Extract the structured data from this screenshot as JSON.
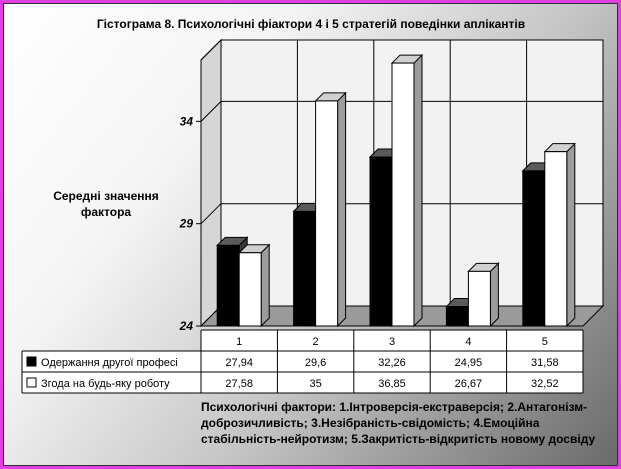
{
  "chart_data": {
    "type": "bar",
    "title": "Гістограма 8. Психологічні фіактори 4 і 5 стратегій поведінки аплікантів",
    "ylabel": [
      "Середні значення",
      "фактора"
    ],
    "ylim": [
      24,
      37
    ],
    "yticks": [
      "24",
      "29",
      "34"
    ],
    "categories": [
      "1",
      "2",
      "3",
      "4",
      "5"
    ],
    "series": [
      {
        "name": "Одержання другої професі",
        "color": "#000000",
        "values": [
          27.94,
          29.6,
          32.26,
          24.95,
          31.58
        ],
        "labels": [
          "27,94",
          "29,6",
          "32,26",
          "24,95",
          "31,58"
        ]
      },
      {
        "name": "Згода на будь-яку роботу",
        "color": "#ffffff",
        "values": [
          27.58,
          35,
          36.85,
          26.67,
          32.52
        ],
        "labels": [
          "27,58",
          "35",
          "36,85",
          "26,67",
          "32,52"
        ]
      }
    ],
    "grid": true,
    "legend": "table-below",
    "footnote": [
      "Психологічні фактори: 1.Інтроверсія-екстраверсія; 2.Антагонізм-",
      "доброзичливість; 3.Незібраність-свідомість; 4.Емоційна",
      "стабільність-нейротизм; 5.Закритість-відкритість новому досвіду"
    ]
  }
}
